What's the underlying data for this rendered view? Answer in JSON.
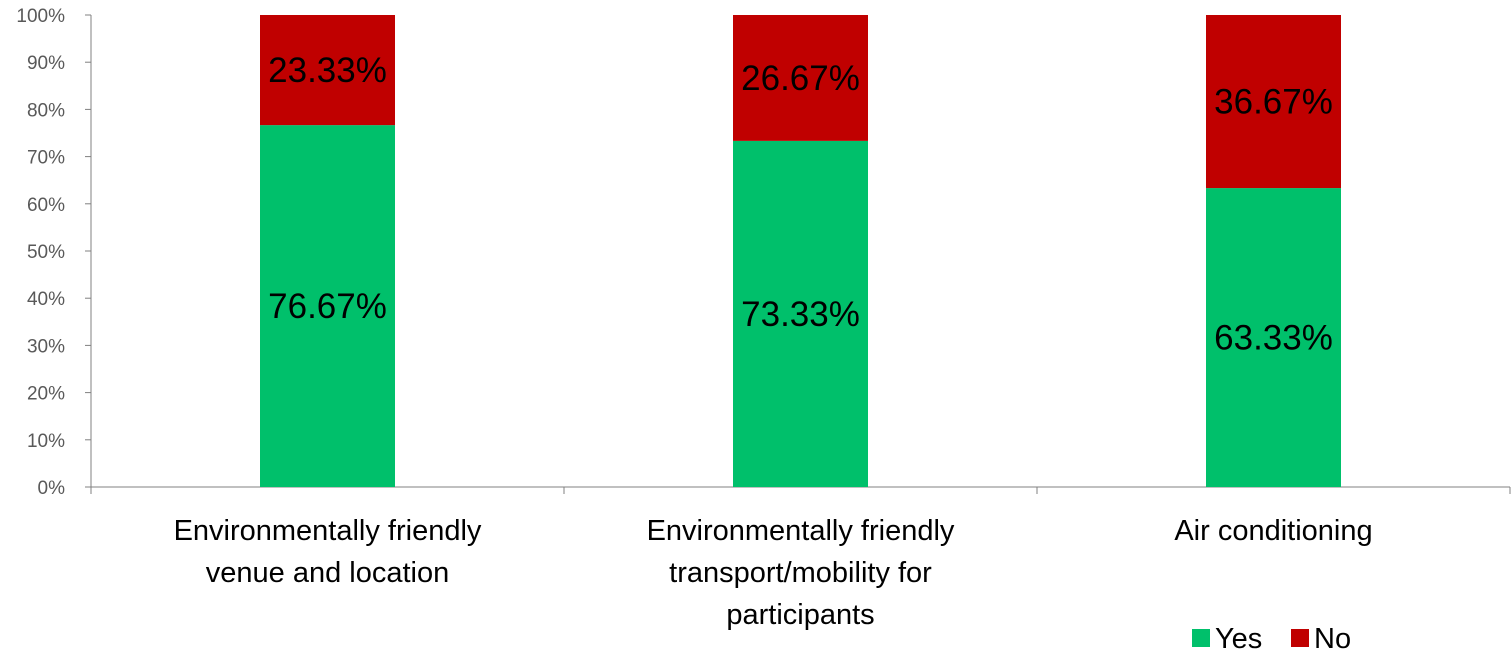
{
  "chart_data": {
    "type": "bar",
    "stacked": true,
    "categories": [
      [
        "Environmentally friendly",
        "venue and location"
      ],
      [
        "Environmentally friendly",
        "transport/mobility for",
        "participants"
      ],
      [
        "Air conditioning"
      ]
    ],
    "series": [
      {
        "name": "Yes",
        "color": "#00C06B",
        "values": [
          76.67,
          73.33,
          63.33
        ],
        "labels": [
          "76.67%",
          "73.33%",
          "63.33%"
        ]
      },
      {
        "name": "No",
        "color": "#C00000",
        "values": [
          23.33,
          26.67,
          36.67
        ],
        "labels": [
          "23.33%",
          "26.67%",
          "36.67%"
        ]
      }
    ],
    "ylim": [
      0,
      100
    ],
    "yticks": [
      "0%",
      "10%",
      "20%",
      "30%",
      "40%",
      "50%",
      "60%",
      "70%",
      "80%",
      "90%",
      "100%"
    ],
    "grid": false,
    "legend_position": "bottom-right",
    "title": "",
    "xlabel": "",
    "ylabel": ""
  }
}
